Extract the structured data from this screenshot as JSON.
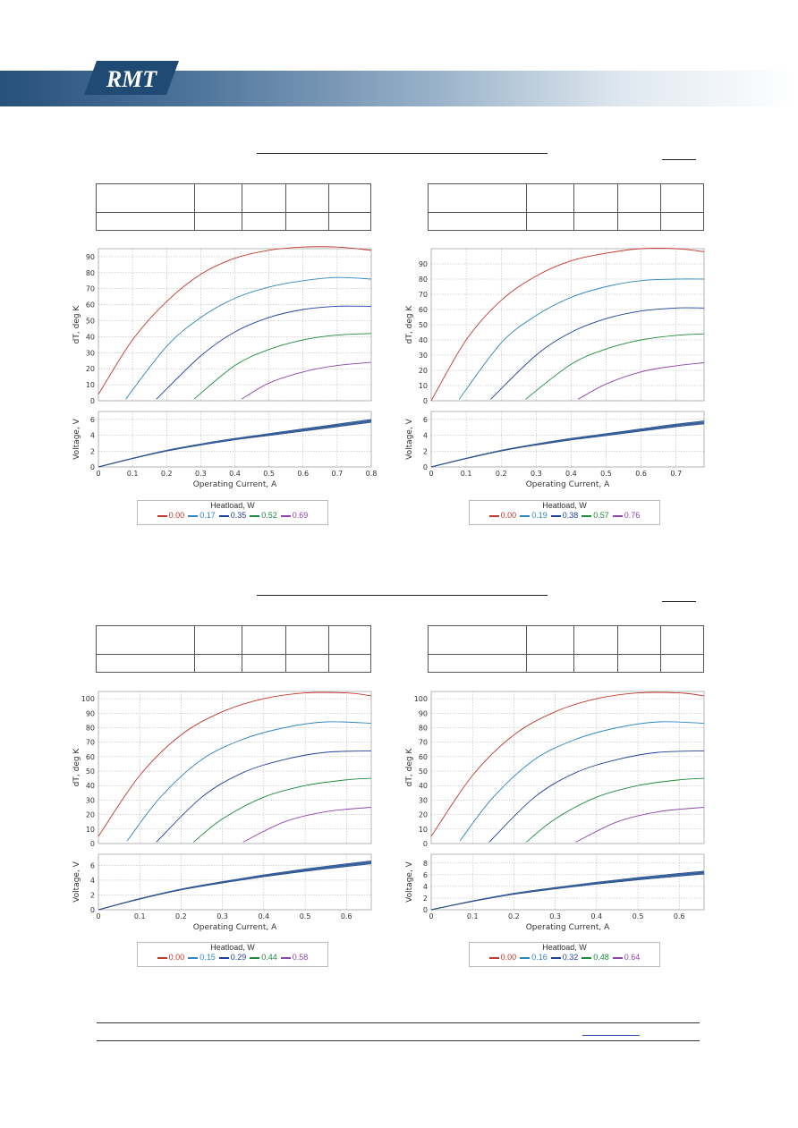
{
  "header": {
    "logo_text": "RMT",
    "banner_colors": [
      "#27507a",
      "#9ab3ca",
      "#ffffff"
    ]
  },
  "colors": {
    "series": [
      "#c0392b",
      "#2e86c1",
      "#1f3f9e",
      "#1e8a3c",
      "#8e44ad"
    ],
    "voltage": "#2c4d86",
    "grid": "#aaaaaa"
  },
  "chart_data": [
    {
      "type": "line",
      "xlabel": "Operating Current, A",
      "ylabel_top": "dT, deg K",
      "ylabel_bottom": "Voltage, V",
      "xlim": [
        0,
        0.8
      ],
      "xticks": [
        0,
        0.1,
        0.2,
        0.3,
        0.4,
        0.5,
        0.6,
        0.7,
        0.8
      ],
      "ylim_top": [
        0,
        95
      ],
      "yticks_top": [
        0,
        10,
        20,
        30,
        40,
        50,
        60,
        70,
        80,
        90
      ],
      "ylim_bottom": [
        0,
        7
      ],
      "yticks_bottom": [
        0,
        2,
        4,
        6
      ],
      "legend_title": "Heatload, W",
      "legend_location": "bottom-center",
      "series": [
        {
          "name": "0.00",
          "x": [
            0,
            0.1,
            0.2,
            0.3,
            0.4,
            0.5,
            0.6,
            0.7,
            0.8
          ],
          "y": [
            4,
            38,
            62,
            79,
            89,
            94,
            96,
            96,
            94
          ]
        },
        {
          "name": "0.17",
          "x": [
            0.08,
            0.2,
            0.3,
            0.4,
            0.5,
            0.6,
            0.7,
            0.8
          ],
          "y": [
            1,
            34,
            52,
            64,
            71,
            75,
            77,
            76
          ]
        },
        {
          "name": "0.35",
          "x": [
            0.17,
            0.3,
            0.4,
            0.5,
            0.6,
            0.7,
            0.8
          ],
          "y": [
            1,
            28,
            43,
            52,
            57,
            59,
            59
          ]
        },
        {
          "name": "0.52",
          "x": [
            0.28,
            0.4,
            0.5,
            0.6,
            0.7,
            0.8
          ],
          "y": [
            1,
            22,
            32,
            38,
            41,
            42
          ]
        },
        {
          "name": "0.69",
          "x": [
            0.42,
            0.5,
            0.6,
            0.7,
            0.8
          ],
          "y": [
            1,
            11,
            18,
            22,
            24
          ]
        }
      ],
      "voltage": {
        "x": [
          0,
          0.1,
          0.2,
          0.3,
          0.4,
          0.5,
          0.6,
          0.7,
          0.8
        ],
        "y": [
          0,
          1.1,
          2.1,
          2.9,
          3.6,
          4.2,
          4.8,
          5.4,
          6.0
        ]
      }
    },
    {
      "type": "line",
      "xlabel": "Operating Current, A",
      "ylabel_top": "dT, deg K",
      "ylabel_bottom": "Voltage, V",
      "xlim": [
        0,
        0.78
      ],
      "xticks": [
        0,
        0.1,
        0.2,
        0.3,
        0.4,
        0.5,
        0.6,
        0.7
      ],
      "ylim_top": [
        0,
        100
      ],
      "yticks_top": [
        0,
        10,
        20,
        30,
        40,
        50,
        60,
        70,
        80,
        90
      ],
      "ylim_bottom": [
        0,
        7
      ],
      "yticks_bottom": [
        0,
        2,
        4,
        6
      ],
      "legend_title": "Heatload, W",
      "legend_location": "bottom-center",
      "series": [
        {
          "name": "0.00",
          "x": [
            0,
            0.1,
            0.2,
            0.3,
            0.4,
            0.5,
            0.6,
            0.7,
            0.78
          ],
          "y": [
            0,
            40,
            66,
            82,
            92,
            97,
            100,
            100,
            98
          ]
        },
        {
          "name": "0.19",
          "x": [
            0.08,
            0.2,
            0.3,
            0.4,
            0.5,
            0.6,
            0.7,
            0.78
          ],
          "y": [
            1,
            38,
            56,
            68,
            75,
            79,
            80,
            80
          ]
        },
        {
          "name": "0.38",
          "x": [
            0.17,
            0.3,
            0.4,
            0.5,
            0.6,
            0.7,
            0.78
          ],
          "y": [
            1,
            30,
            45,
            54,
            59,
            61,
            61
          ]
        },
        {
          "name": "0.57",
          "x": [
            0.27,
            0.4,
            0.5,
            0.6,
            0.7,
            0.78
          ],
          "y": [
            1,
            24,
            34,
            40,
            43,
            44
          ]
        },
        {
          "name": "0.76",
          "x": [
            0.42,
            0.5,
            0.6,
            0.7,
            0.78
          ],
          "y": [
            1,
            11,
            19,
            23,
            25
          ]
        }
      ],
      "voltage": {
        "x": [
          0,
          0.1,
          0.2,
          0.3,
          0.4,
          0.5,
          0.6,
          0.7,
          0.78
        ],
        "y": [
          0,
          1.1,
          2.1,
          2.9,
          3.6,
          4.2,
          4.8,
          5.4,
          5.8
        ]
      }
    },
    {
      "type": "line",
      "xlabel": "Operating Current, A",
      "ylabel_top": "dT, deg K",
      "ylabel_bottom": "Voltage, V",
      "xlim": [
        0,
        0.66
      ],
      "xticks": [
        0,
        0.1,
        0.2,
        0.3,
        0.4,
        0.5,
        0.6
      ],
      "ylim_top": [
        0,
        105
      ],
      "yticks_top": [
        0,
        10,
        20,
        30,
        40,
        50,
        60,
        70,
        80,
        90,
        100
      ],
      "ylim_bottom": [
        0,
        7.5
      ],
      "yticks_bottom": [
        0,
        2,
        4,
        6
      ],
      "legend_title": "Heatload, W",
      "legend_location": "bottom-center",
      "series": [
        {
          "name": "0.00",
          "x": [
            0,
            0.1,
            0.2,
            0.3,
            0.4,
            0.5,
            0.6,
            0.66
          ],
          "y": [
            5,
            47,
            75,
            91,
            100,
            104,
            104,
            102
          ]
        },
        {
          "name": "0.15",
          "x": [
            0.07,
            0.15,
            0.25,
            0.35,
            0.45,
            0.55,
            0.66
          ],
          "y": [
            2,
            32,
            58,
            72,
            80,
            84,
            83
          ]
        },
        {
          "name": "0.29",
          "x": [
            0.14,
            0.25,
            0.35,
            0.45,
            0.55,
            0.66
          ],
          "y": [
            1,
            32,
            49,
            58,
            63,
            64
          ]
        },
        {
          "name": "0.44",
          "x": [
            0.23,
            0.3,
            0.4,
            0.5,
            0.6,
            0.66
          ],
          "y": [
            1,
            17,
            32,
            40,
            44,
            45
          ]
        },
        {
          "name": "0.58",
          "x": [
            0.35,
            0.45,
            0.55,
            0.66
          ],
          "y": [
            1,
            15,
            22,
            25
          ]
        }
      ],
      "voltage": {
        "x": [
          0,
          0.1,
          0.2,
          0.3,
          0.4,
          0.5,
          0.6,
          0.66
        ],
        "y": [
          0,
          1.5,
          2.8,
          3.8,
          4.7,
          5.5,
          6.2,
          6.6
        ]
      }
    },
    {
      "type": "line",
      "xlabel": "Operating Current, A",
      "ylabel_top": "dT, deg K",
      "ylabel_bottom": "Voltage, V",
      "xlim": [
        0,
        0.66
      ],
      "xticks": [
        0,
        0.1,
        0.2,
        0.3,
        0.4,
        0.5,
        0.6
      ],
      "ylim_top": [
        0,
        105
      ],
      "yticks_top": [
        0,
        10,
        20,
        30,
        40,
        50,
        60,
        70,
        80,
        90,
        100
      ],
      "ylim_bottom": [
        0,
        9.5
      ],
      "yticks_bottom": [
        0,
        2,
        4,
        6,
        8
      ],
      "legend_title": "Heatload, W",
      "legend_location": "bottom-center",
      "series": [
        {
          "name": "0.00",
          "x": [
            0,
            0.1,
            0.2,
            0.3,
            0.4,
            0.5,
            0.6,
            0.66
          ],
          "y": [
            5,
            47,
            75,
            91,
            100,
            104,
            104,
            102
          ]
        },
        {
          "name": "0.16",
          "x": [
            0.07,
            0.15,
            0.25,
            0.35,
            0.45,
            0.55,
            0.66
          ],
          "y": [
            2,
            32,
            58,
            72,
            80,
            84,
            83
          ]
        },
        {
          "name": "0.32",
          "x": [
            0.14,
            0.25,
            0.35,
            0.45,
            0.55,
            0.66
          ],
          "y": [
            1,
            32,
            49,
            58,
            63,
            64
          ]
        },
        {
          "name": "0.48",
          "x": [
            0.23,
            0.3,
            0.4,
            0.5,
            0.6,
            0.66
          ],
          "y": [
            1,
            17,
            32,
            40,
            44,
            45
          ]
        },
        {
          "name": "0.64",
          "x": [
            0.35,
            0.45,
            0.55,
            0.66
          ],
          "y": [
            1,
            15,
            22,
            25
          ]
        }
      ],
      "voltage": {
        "x": [
          0,
          0.1,
          0.2,
          0.3,
          0.4,
          0.5,
          0.6,
          0.66
        ],
        "y": [
          0,
          1.5,
          2.8,
          3.8,
          4.7,
          5.5,
          6.2,
          6.6
        ]
      }
    }
  ]
}
